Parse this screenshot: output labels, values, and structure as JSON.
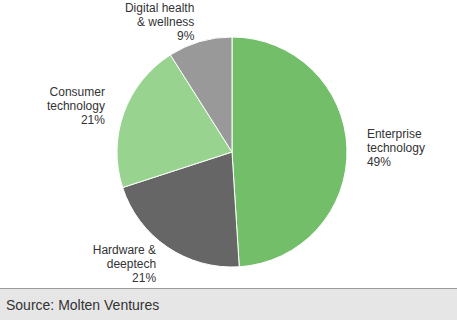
{
  "chart_data": {
    "type": "pie",
    "categories": [
      "Enterprise technology",
      "Hardware & deeptech",
      "Consumer technology",
      "Digital health & wellness"
    ],
    "values": [
      49,
      21,
      21,
      9
    ],
    "value_labels": [
      "49%",
      "21%",
      "21%",
      "9%"
    ],
    "colors": [
      "#73bf69",
      "#666666",
      "#98d48f",
      "#999999"
    ],
    "data_labels": true,
    "source": "Source: Molten Ventures"
  }
}
